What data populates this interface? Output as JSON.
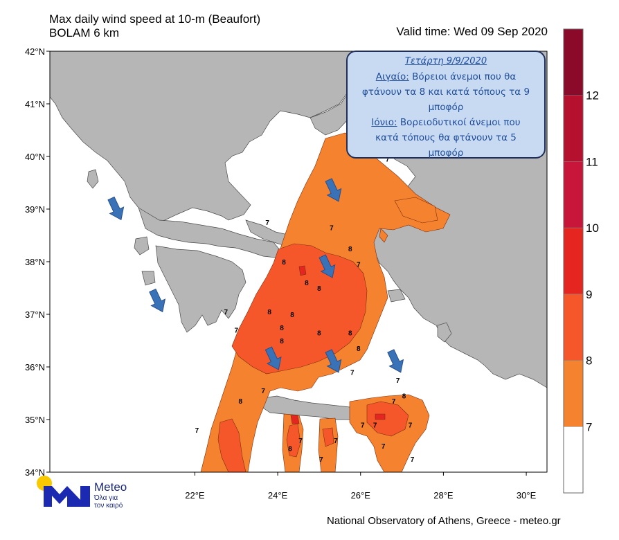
{
  "title_line1": "Max daily wind speed at 10-m (Beaufort)",
  "title_line2": "BOLAM 6 km",
  "valid_time": "Valid time: Wed 09 Sep 2020",
  "footer": "National Observatory of Athens, Greece - meteo.gr",
  "logo": {
    "name": "Meteo",
    "tagline1": "Όλα για",
    "tagline2": "τον καιρό",
    "icon": "meteo-m-logo-icon"
  },
  "callout": {
    "date": "Τετάρτη 9/9/2020",
    "aegean_label": "Αιγαίο:",
    "aegean_text1": " Βόρειοι άνεμοι που θα",
    "aegean_text2": "φτάνουν τα 8 και κατά τόπους τα 9",
    "aegean_text3": "μποφόρ",
    "ionian_label": "Ιόνιο:",
    "ionian_text1": " Βορειοδυτικοί άνεμοι που",
    "ionian_text2": "κατά τόπους θα φτάνουν τα 5",
    "ionian_text3": "μποφόρ"
  },
  "lat_labels": [
    "42°N",
    "41°N",
    "40°N",
    "39°N",
    "38°N",
    "37°N",
    "36°N",
    "35°N",
    "34°N"
  ],
  "lon_labels": [
    "22°E",
    "24°E",
    "26°E",
    "28°E",
    "30°E"
  ],
  "colorbar": {
    "labels": [
      "12",
      "11",
      "10",
      "9",
      "8",
      "7"
    ],
    "colors": [
      "#8b0a2a",
      "#b5102e",
      "#c8163a",
      "#e52620",
      "#f5572a",
      "#f5822e",
      "#ffffff"
    ]
  },
  "colors": {
    "land": "#b6b6b6",
    "sea": "#ffffff",
    "wind7": "#f5822e",
    "wind8": "#f5572a",
    "wind9": "#e52620",
    "arrow": "#3a72b8"
  },
  "contour_labels": [
    {
      "t": "7",
      "lon": 25.85,
      "lat": 40.0
    },
    {
      "t": "7",
      "lon": 26.65,
      "lat": 39.9
    },
    {
      "t": "7",
      "lon": 23.75,
      "lat": 38.7
    },
    {
      "t": "7",
      "lon": 25.3,
      "lat": 38.6
    },
    {
      "t": "8",
      "lon": 25.75,
      "lat": 38.2
    },
    {
      "t": "7",
      "lon": 25.95,
      "lat": 37.9
    },
    {
      "t": "8",
      "lon": 24.15,
      "lat": 37.95
    },
    {
      "t": "8",
      "lon": 24.7,
      "lat": 37.55
    },
    {
      "t": "8",
      "lon": 25.0,
      "lat": 37.45
    },
    {
      "t": "7",
      "lon": 22.75,
      "lat": 37.0
    },
    {
      "t": "8",
      "lon": 23.8,
      "lat": 37.0
    },
    {
      "t": "8",
      "lon": 24.35,
      "lat": 36.95
    },
    {
      "t": "8",
      "lon": 24.1,
      "lat": 36.7
    },
    {
      "t": "7",
      "lon": 23.0,
      "lat": 36.65
    },
    {
      "t": "8",
      "lon": 24.1,
      "lat": 36.45
    },
    {
      "t": "8",
      "lon": 25.75,
      "lat": 36.6
    },
    {
      "t": "8",
      "lon": 25.0,
      "lat": 36.6
    },
    {
      "t": "8",
      "lon": 25.95,
      "lat": 36.3
    },
    {
      "t": "7",
      "lon": 25.8,
      "lat": 35.85
    },
    {
      "t": "7",
      "lon": 23.65,
      "lat": 35.5
    },
    {
      "t": "8",
      "lon": 23.1,
      "lat": 35.3
    },
    {
      "t": "7",
      "lon": 26.9,
      "lat": 35.7
    },
    {
      "t": "7",
      "lon": 26.8,
      "lat": 35.3
    },
    {
      "t": "8",
      "lon": 27.05,
      "lat": 35.4
    },
    {
      "t": "7",
      "lon": 26.05,
      "lat": 34.85
    },
    {
      "t": "7",
      "lon": 26.35,
      "lat": 34.85
    },
    {
      "t": "7",
      "lon": 27.2,
      "lat": 34.85
    },
    {
      "t": "7",
      "lon": 22.05,
      "lat": 34.75
    },
    {
      "t": "7",
      "lon": 24.55,
      "lat": 34.55
    },
    {
      "t": "7",
      "lon": 25.4,
      "lat": 34.55
    },
    {
      "t": "8",
      "lon": 24.3,
      "lat": 34.4
    },
    {
      "t": "7",
      "lon": 25.05,
      "lat": 34.2
    },
    {
      "t": "7",
      "lon": 26.55,
      "lat": 34.45
    },
    {
      "t": "7",
      "lon": 27.25,
      "lat": 34.2
    }
  ],
  "wind_arrows": [
    {
      "lon": 20.1,
      "lat": 39.0
    },
    {
      "lon": 21.1,
      "lat": 37.25
    },
    {
      "lon": 25.35,
      "lat": 39.35
    },
    {
      "lon": 25.2,
      "lat": 37.9
    },
    {
      "lon": 23.9,
      "lat": 36.15
    },
    {
      "lon": 25.35,
      "lat": 36.1
    },
    {
      "lon": 26.85,
      "lat": 36.1
    }
  ]
}
